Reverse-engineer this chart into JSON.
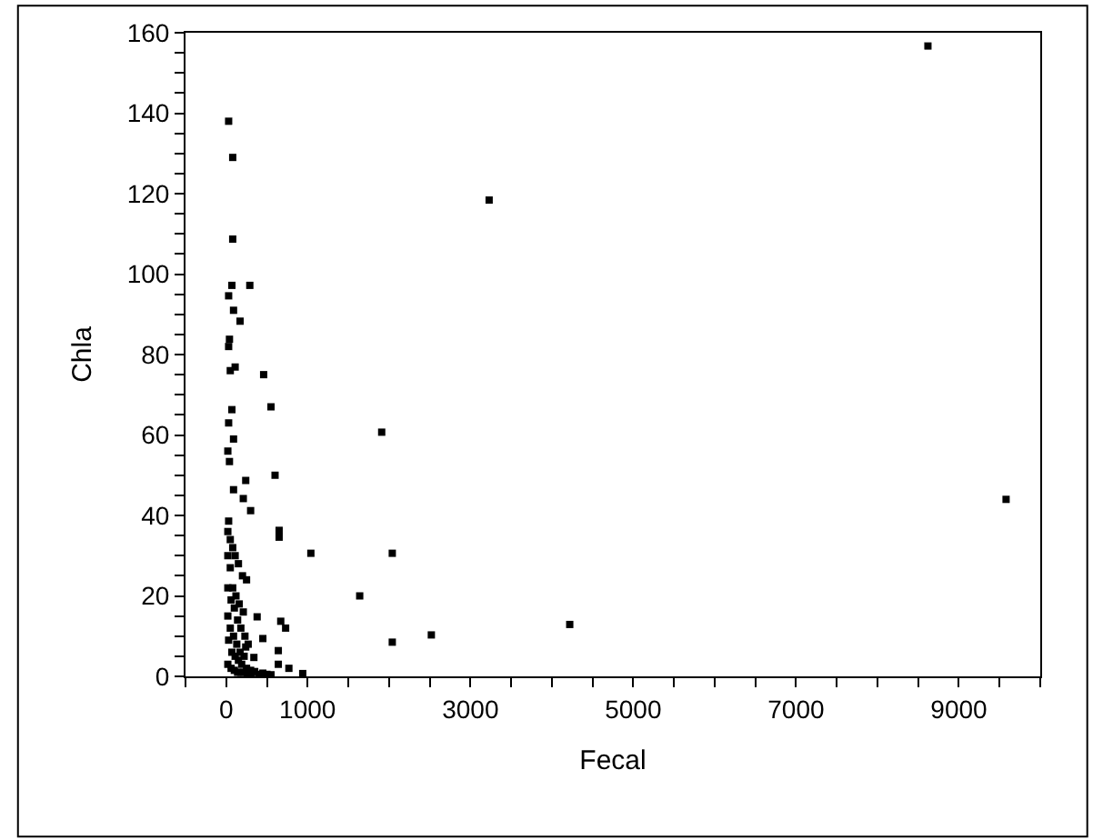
{
  "chart_data": {
    "type": "scatter",
    "xlabel": "Fecal",
    "ylabel": "Chla",
    "xlim": [
      -500,
      10000
    ],
    "ylim": [
      0,
      160
    ],
    "xticks": [
      {
        "value": -500,
        "label": null
      },
      0,
      {
        "value": 500,
        "label": null
      },
      1000,
      {
        "value": 1500,
        "label": null
      },
      {
        "value": 2000,
        "label": null
      },
      {
        "value": 2500,
        "label": null
      },
      3000,
      {
        "value": 3500,
        "label": null
      },
      {
        "value": 4000,
        "label": null
      },
      {
        "value": 4500,
        "label": null
      },
      5000,
      {
        "value": 5500,
        "label": null
      },
      {
        "value": 6000,
        "label": null
      },
      {
        "value": 6500,
        "label": null
      },
      7000,
      {
        "value": 7500,
        "label": null
      },
      {
        "value": 8000,
        "label": null
      },
      {
        "value": 8500,
        "label": null
      },
      9000,
      {
        "value": 9500,
        "label": null
      },
      {
        "value": 10000,
        "label": null
      }
    ],
    "yticks": [
      0,
      {
        "value": 5,
        "label": null
      },
      {
        "value": 10,
        "label": null
      },
      {
        "value": 15,
        "label": null
      },
      20,
      {
        "value": 25,
        "label": null
      },
      {
        "value": 30,
        "label": null
      },
      {
        "value": 35,
        "label": null
      },
      40,
      {
        "value": 45,
        "label": null
      },
      {
        "value": 50,
        "label": null
      },
      {
        "value": 55,
        "label": null
      },
      60,
      {
        "value": 65,
        "label": null
      },
      {
        "value": 70,
        "label": null
      },
      {
        "value": 75,
        "label": null
      },
      80,
      {
        "value": 85,
        "label": null
      },
      {
        "value": 90,
        "label": null
      },
      {
        "value": 95,
        "label": null
      },
      100,
      {
        "value": 105,
        "label": null
      },
      {
        "value": 110,
        "label": null
      },
      {
        "value": 115,
        "label": null
      },
      120,
      {
        "value": 125,
        "label": null
      },
      {
        "value": 130,
        "label": null
      },
      {
        "value": 135,
        "label": null
      },
      140,
      {
        "value": 145,
        "label": null
      },
      {
        "value": 150,
        "label": null
      },
      {
        "value": 155,
        "label": null
      },
      160
    ],
    "marker": "square",
    "series": [
      {
        "color": "#000000",
        "x": [
          8620,
          3230,
          9580,
          1910,
          2040,
          1040,
          1640,
          2040,
          2520,
          4220,
          30,
          80,
          80,
          290,
          70,
          30,
          170,
          90,
          40,
          30,
          110,
          50,
          460,
          550,
          70,
          30,
          90,
          20,
          40,
          240,
          600,
          90,
          210,
          300,
          650,
          650,
          30,
          380,
          670,
          730,
          450,
          640,
          640,
          770,
          940,
          340,
          240,
          20,
          50,
          80,
          110,
          150,
          200,
          250,
          20,
          50,
          80,
          120,
          160,
          210,
          20,
          60,
          100,
          140,
          180,
          230,
          270,
          20,
          50,
          90,
          130,
          170,
          220,
          30,
          70,
          110,
          150,
          190,
          250,
          300,
          20,
          60,
          100,
          140,
          180,
          220,
          260,
          310,
          350,
          400,
          450,
          500,
          550
        ],
        "values": [
          156.7,
          118.4,
          44,
          60.7,
          30.6,
          30.6,
          20,
          8.5,
          10.3,
          12.9,
          138,
          129,
          108.7,
          97.2,
          97.2,
          94.6,
          88.3,
          91,
          83.8,
          82,
          76.9,
          76,
          75,
          67,
          66.3,
          63,
          59,
          56,
          53.4,
          48.7,
          50,
          46.4,
          44.2,
          41.2,
          36.3,
          34.6,
          38.6,
          14.8,
          13.7,
          12,
          9.4,
          6.4,
          3,
          2,
          0.7,
          4.7,
          7.3,
          36,
          34,
          32,
          30,
          28,
          25,
          24,
          30,
          27,
          22,
          20,
          18,
          16,
          22,
          19,
          17,
          14,
          12,
          10,
          8,
          15,
          12,
          10,
          8,
          6,
          5,
          9,
          6,
          5,
          4,
          3,
          2,
          1.5,
          3,
          2,
          1.5,
          1,
          1,
          1,
          0.8,
          0.7,
          1.2,
          0.5,
          0.8,
          0.5,
          0.4
        ]
      }
    ]
  }
}
